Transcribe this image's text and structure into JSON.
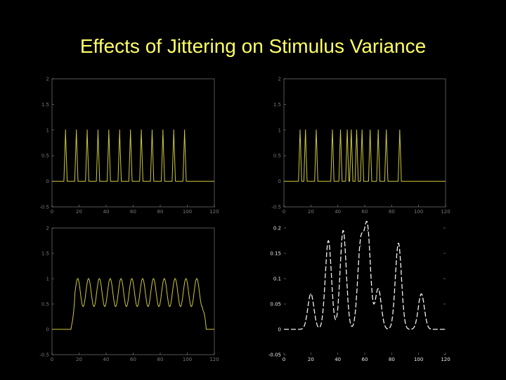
{
  "slide": {
    "title": "Effects of Jittering on Stimulus Variance"
  },
  "colors": {
    "background": "#000000",
    "title": "#ffff66",
    "trace_yellow": "#cfc83c",
    "trace_white": "#f2f2f2",
    "axis_gray": "#8a8a8a",
    "tick_text": "#777777"
  },
  "chart_data": [
    {
      "id": "top-left",
      "type": "line",
      "title": "",
      "xlabel": "",
      "ylabel": "",
      "series_color": "yellow",
      "xlim": [
        0,
        120
      ],
      "ylim": [
        -0.5,
        2
      ],
      "xticks": [
        0,
        20,
        40,
        60,
        80,
        100,
        120
      ],
      "yticks": [
        -0.5,
        0,
        0.5,
        1,
        1.5,
        2
      ],
      "xtick_labels": [
        "0",
        "20",
        "40",
        "60",
        "80",
        "100",
        "120"
      ],
      "ytick_labels": [
        "-0.5",
        "0",
        "0.5",
        "1",
        "1.5",
        "2"
      ],
      "pulse_centers": [
        10,
        18,
        26,
        34,
        42,
        50,
        58,
        66,
        74,
        82,
        90,
        98
      ],
      "pulse_height": 1,
      "pulse_halfwidth": 1.2,
      "baseline": 0
    },
    {
      "id": "top-right",
      "type": "line",
      "title": "",
      "xlabel": "",
      "ylabel": "",
      "series_color": "yellow",
      "xlim": [
        0,
        120
      ],
      "ylim": [
        -0.5,
        2
      ],
      "xticks": [
        0,
        20,
        40,
        60,
        80,
        100,
        120
      ],
      "yticks": [
        -0.5,
        0,
        0.5,
        1,
        1.5,
        2
      ],
      "xtick_labels": [
        "0",
        "20",
        "40",
        "60",
        "80",
        "100",
        "120"
      ],
      "ytick_labels": [
        "-0.5",
        "0",
        "0.5",
        "1",
        "1.5",
        "2"
      ],
      "pulse_centers": [
        12,
        16,
        24,
        36,
        42,
        47,
        50,
        54,
        58,
        64,
        70,
        76,
        86
      ],
      "pulse_height": 1,
      "pulse_halfwidth": 1.2,
      "baseline": 0
    },
    {
      "id": "bottom-left",
      "type": "line",
      "title": "",
      "xlabel": "",
      "ylabel": "",
      "series_color": "yellow",
      "xlim": [
        0,
        120
      ],
      "ylim": [
        -0.5,
        2
      ],
      "xticks": [
        0,
        20,
        40,
        60,
        80,
        100,
        120
      ],
      "yticks": [
        -0.5,
        0,
        0.5,
        1,
        1.5,
        2
      ],
      "xtick_labels": [
        "0",
        "20",
        "40",
        "60",
        "80",
        "100",
        "120"
      ],
      "ytick_labels": [
        "-0.5",
        "0",
        "0.5",
        "1",
        "1.5",
        "2"
      ],
      "envelope_start": 16,
      "envelope_end": 112,
      "oscillation_centers": [
        19,
        27,
        35,
        43,
        51,
        59,
        67,
        75,
        83,
        91,
        99,
        107
      ],
      "oscillation_peak": 1.0,
      "oscillation_trough": 0.45
    },
    {
      "id": "bottom-right",
      "type": "line",
      "title": "",
      "xlabel": "",
      "ylabel": "",
      "series_color": "white",
      "line_style": "dashed",
      "xlim": [
        0,
        120
      ],
      "ylim": [
        -0.05,
        0.2
      ],
      "xticks": [
        0,
        20,
        40,
        60,
        80,
        100,
        120
      ],
      "yticks": [
        -0.05,
        0,
        0.05,
        0.1,
        0.15,
        0.2
      ],
      "xtick_labels": [
        "0",
        "20",
        "40",
        "60",
        "80",
        "100",
        "120"
      ],
      "ytick_labels": [
        "-0.05",
        "0",
        "0.05",
        "0.1",
        "0.15",
        "0.2"
      ],
      "peaks": [
        {
          "x": 20,
          "y": 0.07
        },
        {
          "x": 33,
          "y": 0.175
        },
        {
          "x": 44,
          "y": 0.195
        },
        {
          "x": 57,
          "y": 0.165
        },
        {
          "x": 62,
          "y": 0.195
        },
        {
          "x": 70,
          "y": 0.08
        },
        {
          "x": 85,
          "y": 0.17
        },
        {
          "x": 102,
          "y": 0.07
        }
      ],
      "peak_width": 3.2,
      "baseline": 0
    }
  ]
}
